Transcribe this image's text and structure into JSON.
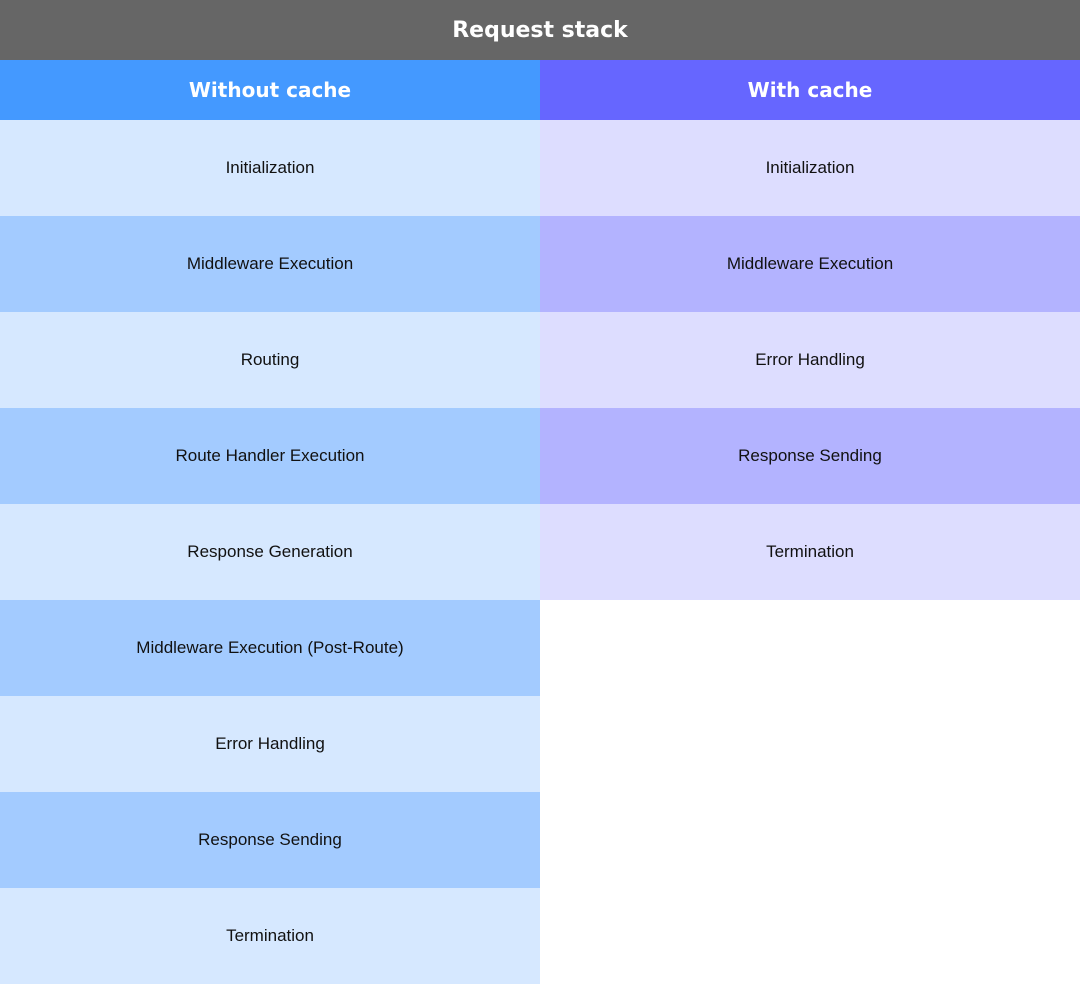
{
  "title": "Request stack",
  "colors": {
    "title_bg": "#666666",
    "without_header_bg": "#4499FF",
    "without_light": "#D6E8FF",
    "without_dark": "#A3CBFF",
    "with_header_bg": "#6666FF",
    "with_light": "#DDDDFF",
    "with_dark": "#B3B3FF"
  },
  "columns": [
    {
      "key": "without",
      "header": "Without cache",
      "steps": [
        "Initialization",
        "Middleware Execution",
        "Routing",
        "Route Handler Execution",
        "Response Generation",
        "Middleware Execution (Post-Route)",
        "Error Handling",
        "Response Sending",
        "Termination"
      ]
    },
    {
      "key": "with",
      "header": "With cache",
      "steps": [
        "Initialization",
        "Middleware Execution",
        "Error Handling",
        "Response Sending",
        "Termination"
      ]
    }
  ]
}
